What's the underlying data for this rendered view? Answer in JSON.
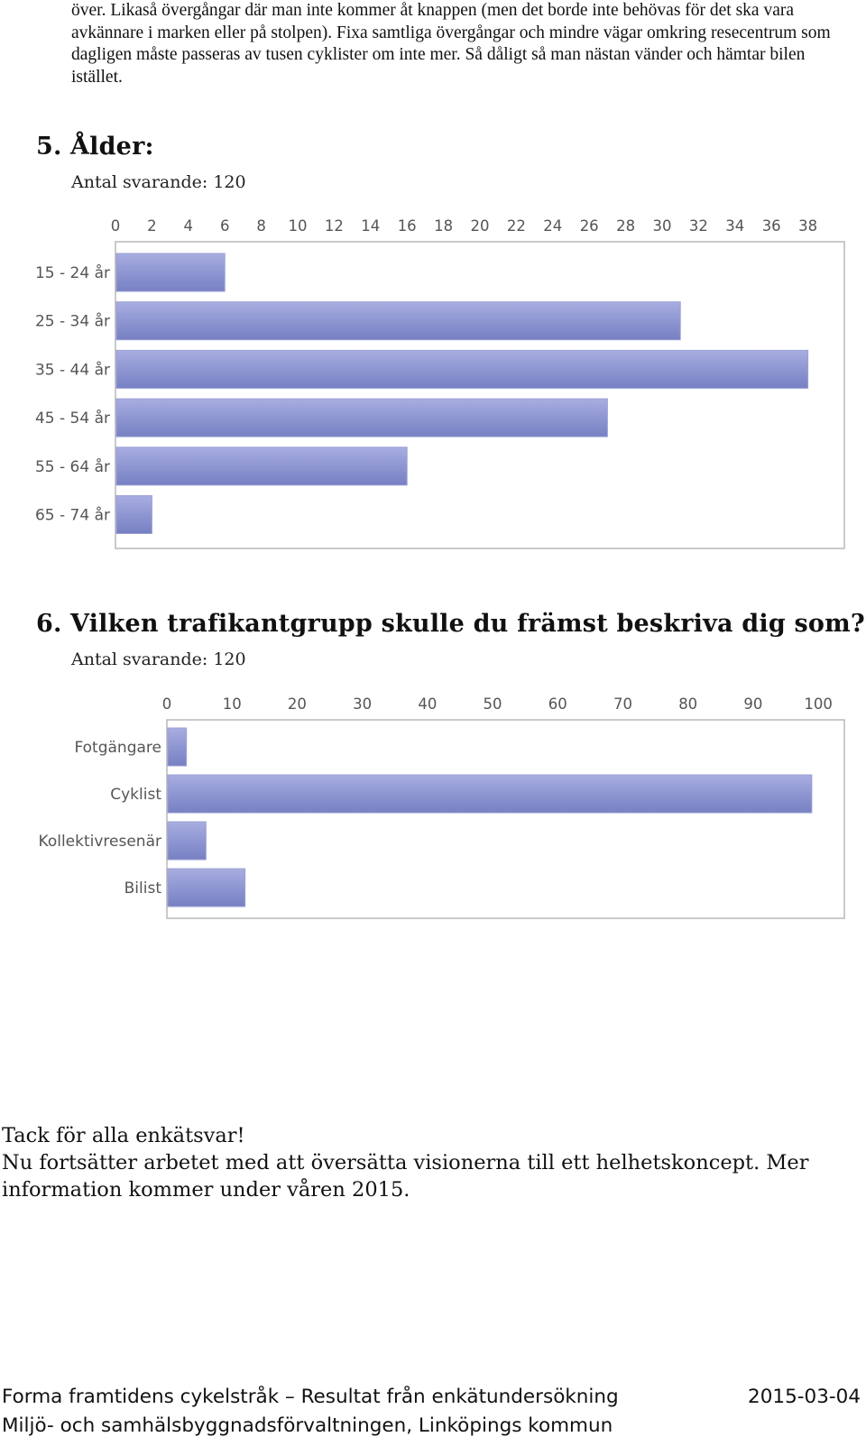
{
  "intro_text": "över. Likaså övergångar där man inte kommer åt knappen (men det borde inte behövas för det ska vara avkännare i marken eller på stolpen). Fixa samtliga övergångar och mindre vägar omkring resecentrum som dagligen måste passeras av tusen cyklister om inte mer. Så dåligt så man nästan vänder och hämtar bilen istället.",
  "question5": {
    "number": "5.",
    "title": "Ålder:",
    "respondents": "Antal svarande: 120"
  },
  "question6": {
    "number": "6.",
    "title": "Vilken trafikantgrupp skulle du främst beskriva dig som?",
    "respondents": "Antal svarande: 120"
  },
  "chart_data": [
    {
      "type": "bar",
      "orientation": "horizontal",
      "categories": [
        "15 - 24 år",
        "25 - 34 år",
        "35 - 44 år",
        "45 - 54 år",
        "55 - 64 år",
        "65 - 74 år"
      ],
      "values": [
        6,
        31,
        38,
        27,
        16,
        2
      ],
      "ticks": [
        0,
        2,
        4,
        6,
        8,
        10,
        12,
        14,
        16,
        18,
        20,
        22,
        24,
        26,
        28,
        30,
        32,
        34,
        36,
        38
      ],
      "xlim": [
        0,
        40
      ],
      "axis_position": "top",
      "grid": false,
      "bar_color": "#8e96d2"
    },
    {
      "type": "bar",
      "orientation": "horizontal",
      "categories": [
        "Fotgängare",
        "Cyklist",
        "Kollektivresenär",
        "Bilist"
      ],
      "values": [
        3,
        99,
        6,
        12
      ],
      "ticks": [
        0,
        10,
        20,
        30,
        40,
        50,
        60,
        70,
        80,
        90,
        100
      ],
      "xlim": [
        0,
        104
      ],
      "axis_position": "top",
      "grid": false,
      "bar_color": "#8e96d2"
    }
  ],
  "outro": {
    "line1": "Tack för alla enkätsvar!",
    "line2": "Nu fortsätter arbetet med att översätta visionerna till ett helhetskoncept. Mer information kommer under våren 2015."
  },
  "footer": {
    "title": "Forma framtidens cykelstråk – Resultat från enkätundersökning",
    "date": "2015-03-04",
    "org": "Miljö- och samhälsbyggnadsförvaltningen, Linköpings kommun"
  }
}
